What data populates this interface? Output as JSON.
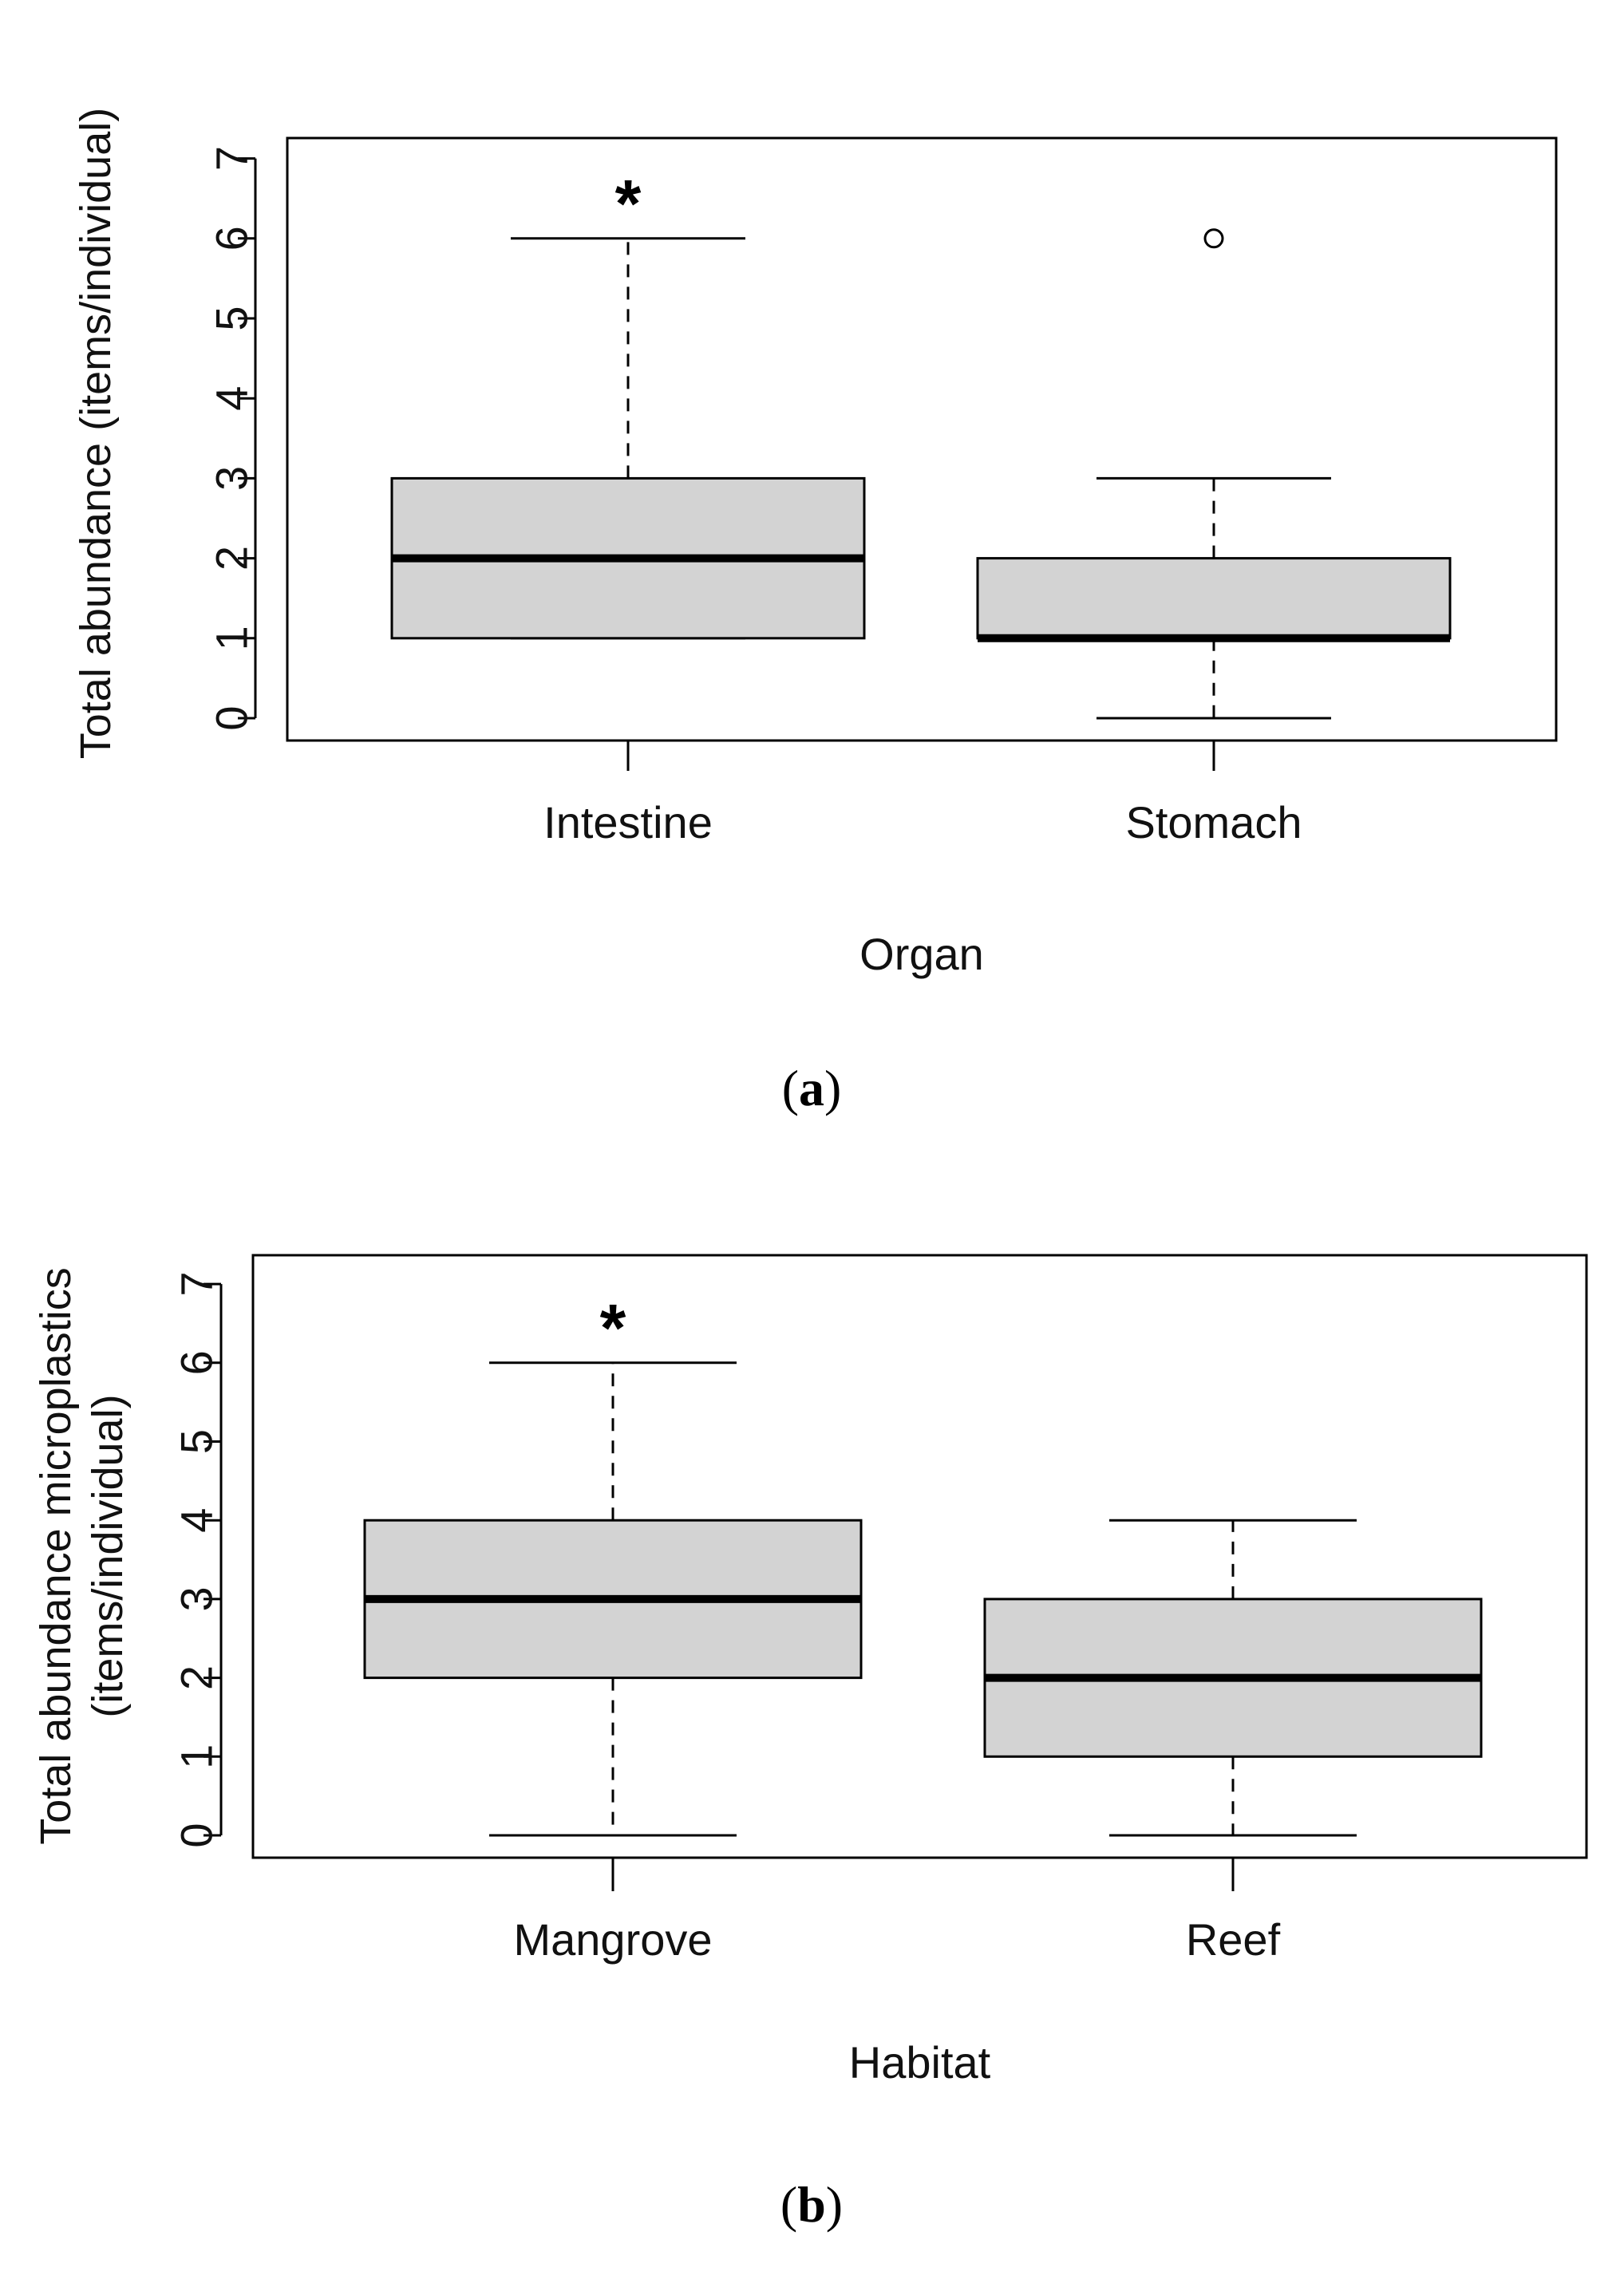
{
  "chart_data": [
    {
      "type": "box",
      "panel_letter": "a",
      "xlabel": "Organ",
      "ylabel_lines": [
        "Total abundance (items/individual)"
      ],
      "ylim": [
        0,
        7
      ],
      "yticks": [
        0,
        1,
        2,
        3,
        4,
        5,
        6,
        7
      ],
      "grid": false,
      "categories": [
        "Intestine",
        "Stomach"
      ],
      "boxes": [
        {
          "category": "Intestine",
          "min": 1,
          "q1": 1,
          "median": 2,
          "q3": 3,
          "max": 6,
          "outliers": [],
          "annotation": "*"
        },
        {
          "category": "Stomach",
          "min": 0,
          "q1": 1,
          "median": 1,
          "q3": 2,
          "max": 3,
          "outliers": [
            6
          ],
          "annotation": ""
        }
      ]
    },
    {
      "type": "box",
      "panel_letter": "b",
      "xlabel": "Habitat",
      "ylabel_lines": [
        "Total abundance microplastics",
        "(items/individual)"
      ],
      "ylim": [
        0,
        7
      ],
      "yticks": [
        0,
        1,
        2,
        3,
        4,
        5,
        6,
        7
      ],
      "grid": false,
      "categories": [
        "Mangrove",
        "Reef"
      ],
      "boxes": [
        {
          "category": "Mangrove",
          "min": 0,
          "q1": 2,
          "median": 3,
          "q3": 4,
          "max": 6,
          "outliers": [],
          "annotation": "*"
        },
        {
          "category": "Reef",
          "min": 0,
          "q1": 1,
          "median": 2,
          "q3": 3,
          "max": 4,
          "outliers": [],
          "annotation": ""
        }
      ]
    }
  ],
  "colors": {
    "box_fill": "#d3d3d3",
    "stroke": "#000000"
  },
  "caption_parens": [
    "(",
    ")"
  ]
}
